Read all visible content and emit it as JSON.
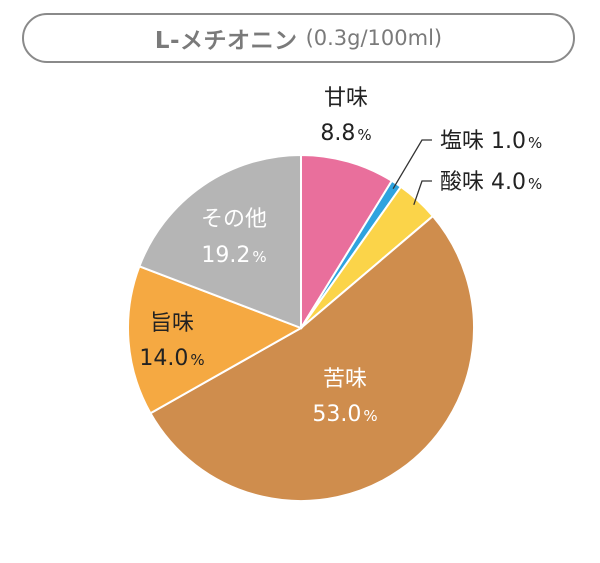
{
  "header": {
    "title": "L-メチオニン",
    "subtitle": "(0.3g/100ml)"
  },
  "chart_data": {
    "type": "pie",
    "title": "L-メチオニン (0.3g/100ml)",
    "slices": [
      {
        "label": "甘味",
        "value": 8.8,
        "display": "8.8",
        "color": "#e96f9c"
      },
      {
        "label": "塩味",
        "value": 1.0,
        "display": "1.0",
        "color": "#2ea3df"
      },
      {
        "label": "酸味",
        "value": 4.0,
        "display": "4.0",
        "color": "#fbd449"
      },
      {
        "label": "苦味",
        "value": 53.0,
        "display": "53.0",
        "color": "#cf8d4d"
      },
      {
        "label": "旨味",
        "value": 14.0,
        "display": "14.0",
        "color": "#f5a942"
      },
      {
        "label": "その他",
        "value": 19.2,
        "display": "19.2",
        "color": "#b5b5b5"
      }
    ],
    "unit": "%",
    "start_angle": "12 o'clock",
    "direction": "clockwise"
  }
}
